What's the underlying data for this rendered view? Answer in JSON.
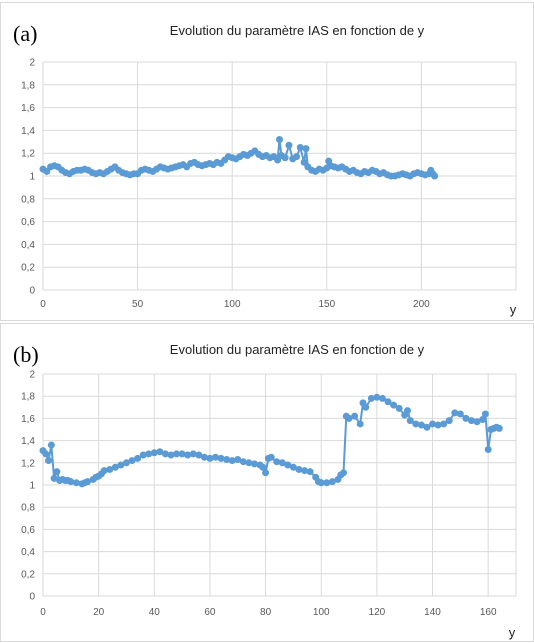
{
  "colors": {
    "series": "#5b9bd5",
    "grid": "#d9d9d9"
  },
  "chart_data": [
    {
      "type": "line",
      "panel_label": "(a)",
      "title": "Evolution du paramètre IAS en fonction de y",
      "xlabel": "y",
      "ylabel": "",
      "xlim": [
        0,
        250
      ],
      "ylim": [
        0,
        2
      ],
      "x_ticks": [
        "0",
        "50",
        "100",
        "150",
        "200"
      ],
      "x_tick_values": [
        0,
        50,
        100,
        150,
        200
      ],
      "y_ticks": [
        "0",
        "0,2",
        "0,4",
        "0,6",
        "0,8",
        "1",
        "1,2",
        "1,4",
        "1,6",
        "1,8",
        "2"
      ],
      "grid": "vertical and horizontal",
      "markers": true,
      "series": [
        {
          "x": [
            0,
            2,
            4,
            6,
            8,
            10,
            12,
            14,
            16,
            18,
            20,
            22,
            24,
            26,
            28,
            30,
            32,
            34,
            36,
            38,
            40,
            42,
            44,
            46,
            48,
            50,
            52,
            54,
            56,
            58,
            60,
            62,
            64,
            66,
            68,
            70,
            72,
            74,
            76,
            78,
            80,
            82,
            84,
            86,
            88,
            90,
            92,
            94,
            96,
            98,
            100,
            102,
            104,
            106,
            108,
            110,
            112,
            114,
            116,
            118,
            120,
            122,
            124,
            125,
            126,
            128,
            130,
            132,
            134,
            136,
            138,
            139,
            140,
            142,
            144,
            146,
            148,
            150,
            151,
            152,
            154,
            156,
            158,
            160,
            162,
            164,
            166,
            168,
            170,
            172,
            174,
            176,
            178,
            180,
            182,
            184,
            186,
            188,
            190,
            192,
            194,
            196,
            198,
            200,
            202,
            204,
            205,
            206,
            207
          ],
          "y": [
            1.06,
            1.04,
            1.08,
            1.09,
            1.08,
            1.05,
            1.03,
            1.02,
            1.04,
            1.05,
            1.05,
            1.06,
            1.05,
            1.03,
            1.02,
            1.03,
            1.02,
            1.04,
            1.06,
            1.08,
            1.05,
            1.03,
            1.02,
            1.01,
            1.02,
            1.02,
            1.05,
            1.06,
            1.05,
            1.04,
            1.06,
            1.08,
            1.07,
            1.06,
            1.07,
            1.08,
            1.09,
            1.1,
            1.08,
            1.11,
            1.12,
            1.1,
            1.09,
            1.1,
            1.11,
            1.1,
            1.12,
            1.11,
            1.14,
            1.17,
            1.16,
            1.15,
            1.17,
            1.19,
            1.18,
            1.2,
            1.22,
            1.19,
            1.17,
            1.18,
            1.16,
            1.17,
            1.14,
            1.32,
            1.18,
            1.16,
            1.27,
            1.15,
            1.17,
            1.25,
            1.12,
            1.24,
            1.08,
            1.05,
            1.04,
            1.06,
            1.05,
            1.07,
            1.13,
            1.09,
            1.08,
            1.07,
            1.08,
            1.06,
            1.04,
            1.05,
            1.03,
            1.02,
            1.04,
            1.03,
            1.05,
            1.04,
            1.02,
            1.03,
            1.01,
            1,
            1,
            1.01,
            1.02,
            1.01,
            1,
            1.02,
            1.03,
            1.02,
            1.01,
            1.02,
            1.05,
            1.02,
            1
          ]
        }
      ]
    },
    {
      "type": "line",
      "panel_label": "(b)",
      "title": "Evolution du paramètre IAS en fonction de y",
      "xlabel": "y",
      "ylabel": "",
      "xlim": [
        0,
        170
      ],
      "ylim": [
        0,
        2
      ],
      "x_ticks": [
        "0",
        "20",
        "40",
        "60",
        "80",
        "100",
        "120",
        "140",
        "160"
      ],
      "x_tick_values": [
        0,
        20,
        40,
        60,
        80,
        100,
        120,
        140,
        160
      ],
      "y_ticks": [
        "0",
        "0,2",
        "0,4",
        "0,6",
        "0,8",
        "1",
        "1,2",
        "1,4",
        "1,6",
        "1,8",
        "2"
      ],
      "grid": "vertical and horizontal",
      "markers": true,
      "series": [
        {
          "x": [
            0,
            1,
            2,
            3,
            4,
            5,
            6,
            7,
            8,
            9,
            10,
            12,
            14,
            15,
            16,
            18,
            19,
            20,
            21,
            22,
            24,
            26,
            28,
            30,
            32,
            34,
            36,
            38,
            40,
            42,
            44,
            46,
            48,
            50,
            52,
            54,
            56,
            58,
            60,
            62,
            64,
            66,
            68,
            70,
            72,
            74,
            76,
            78,
            79,
            80,
            81,
            82,
            84,
            86,
            88,
            90,
            92,
            94,
            96,
            98,
            99,
            100,
            102,
            104,
            106,
            107,
            108,
            109,
            110,
            112,
            114,
            115,
            116,
            118,
            120,
            122,
            124,
            126,
            128,
            130,
            131,
            132,
            134,
            136,
            138,
            140,
            142,
            144,
            146,
            148,
            150,
            152,
            154,
            156,
            158,
            159,
            160,
            161,
            162,
            163,
            164
          ],
          "y": [
            1.31,
            1.28,
            1.22,
            1.36,
            1.06,
            1.12,
            1.04,
            1.05,
            1.04,
            1.04,
            1.03,
            1.02,
            1.01,
            1.02,
            1.03,
            1.05,
            1.07,
            1.08,
            1.1,
            1.13,
            1.14,
            1.16,
            1.18,
            1.2,
            1.22,
            1.24,
            1.27,
            1.28,
            1.29,
            1.3,
            1.28,
            1.27,
            1.28,
            1.28,
            1.27,
            1.28,
            1.27,
            1.25,
            1.24,
            1.25,
            1.24,
            1.23,
            1.22,
            1.23,
            1.21,
            1.2,
            1.19,
            1.18,
            1.16,
            1.11,
            1.24,
            1.25,
            1.21,
            1.2,
            1.18,
            1.16,
            1.14,
            1.13,
            1.12,
            1.07,
            1.03,
            1.02,
            1.02,
            1.03,
            1.05,
            1.09,
            1.11,
            1.62,
            1.6,
            1.62,
            1.55,
            1.74,
            1.7,
            1.78,
            1.79,
            1.78,
            1.75,
            1.72,
            1.69,
            1.63,
            1.67,
            1.58,
            1.55,
            1.54,
            1.52,
            1.55,
            1.54,
            1.55,
            1.58,
            1.65,
            1.64,
            1.6,
            1.58,
            1.57,
            1.59,
            1.64,
            1.32,
            1.5,
            1.51,
            1.52,
            1.51
          ]
        }
      ]
    }
  ]
}
